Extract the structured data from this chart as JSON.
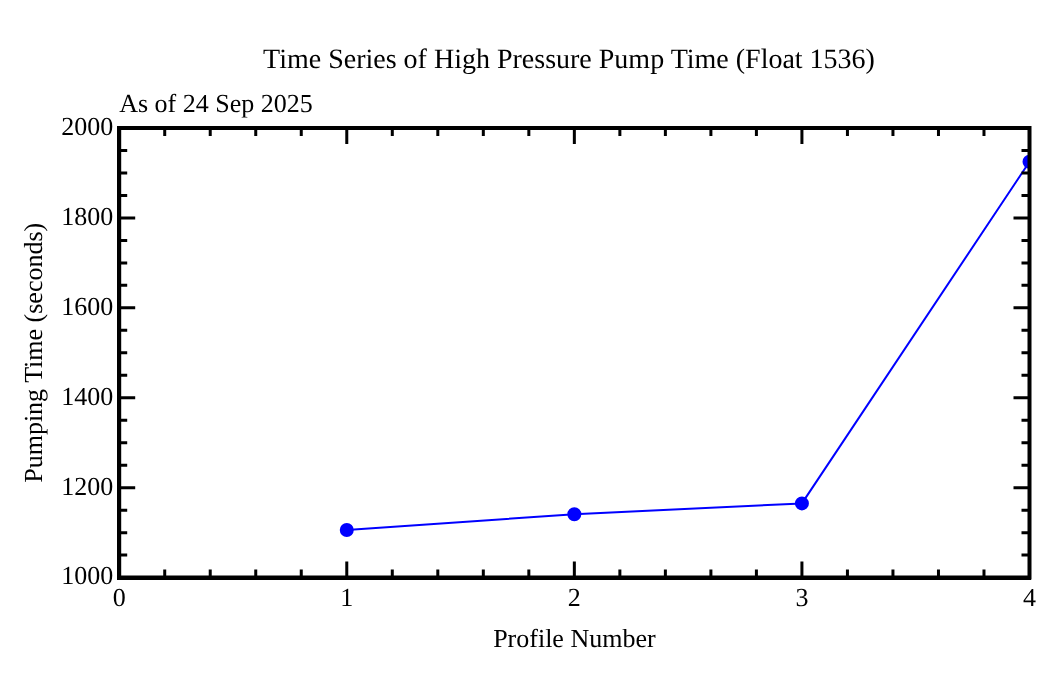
{
  "chart_data": {
    "type": "line",
    "title": "Time Series of High Pressure Pump Time (Float 1536)",
    "subtitle": "As of 24 Sep 2025",
    "xlabel": "Profile Number",
    "ylabel": "Pumping Time (seconds)",
    "x": [
      1,
      2,
      3,
      4
    ],
    "series": [
      {
        "color": "#0000ff",
        "values": [
          1106,
          1141,
          1165,
          1925
        ]
      }
    ],
    "xlim": [
      0,
      4
    ],
    "xticks": [
      0,
      {
        "value": 0.2,
        "label": null
      },
      {
        "value": 0.4,
        "label": null
      },
      {
        "value": 0.6,
        "label": null
      },
      {
        "value": 0.8,
        "label": null
      },
      1,
      {
        "value": 1.2,
        "label": null
      },
      {
        "value": 1.4,
        "label": null
      },
      {
        "value": 1.6,
        "label": null
      },
      {
        "value": 1.8,
        "label": null
      },
      2,
      {
        "value": 2.2,
        "label": null
      },
      {
        "value": 2.4,
        "label": null
      },
      {
        "value": 2.6,
        "label": null
      },
      {
        "value": 2.8,
        "label": null
      },
      3,
      {
        "value": 3.2,
        "label": null
      },
      {
        "value": 3.4,
        "label": null
      },
      {
        "value": 3.6,
        "label": null
      },
      {
        "value": 3.8,
        "label": null
      },
      4
    ],
    "ylim": [
      1000,
      2000
    ],
    "yticks": [
      1000,
      {
        "value": 1050,
        "label": null
      },
      {
        "value": 1100,
        "label": null
      },
      {
        "value": 1150,
        "label": null
      },
      1200,
      {
        "value": 1250,
        "label": null
      },
      {
        "value": 1300,
        "label": null
      },
      {
        "value": 1350,
        "label": null
      },
      1400,
      {
        "value": 1450,
        "label": null
      },
      {
        "value": 1500,
        "label": null
      },
      {
        "value": 1550,
        "label": null
      },
      1600,
      {
        "value": 1650,
        "label": null
      },
      {
        "value": 1700,
        "label": null
      },
      {
        "value": 1750,
        "label": null
      },
      1800,
      {
        "value": 1850,
        "label": null
      },
      {
        "value": 1900,
        "label": null
      },
      {
        "value": 1950,
        "label": null
      },
      2000
    ],
    "grid": false,
    "legend": false,
    "marker": "circle",
    "line_style": "solid"
  }
}
